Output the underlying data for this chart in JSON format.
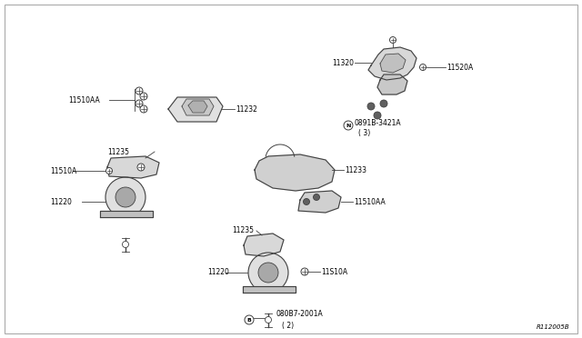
{
  "bg_color": "#ffffff",
  "border_color": "#aaaaaa",
  "line_color": "#404040",
  "text_color": "#000000",
  "fig_ref": "R112005B",
  "figsize": [
    6.4,
    3.72
  ],
  "dpi": 100,
  "xlim": [
    0,
    640
  ],
  "ylim": [
    0,
    372
  ]
}
